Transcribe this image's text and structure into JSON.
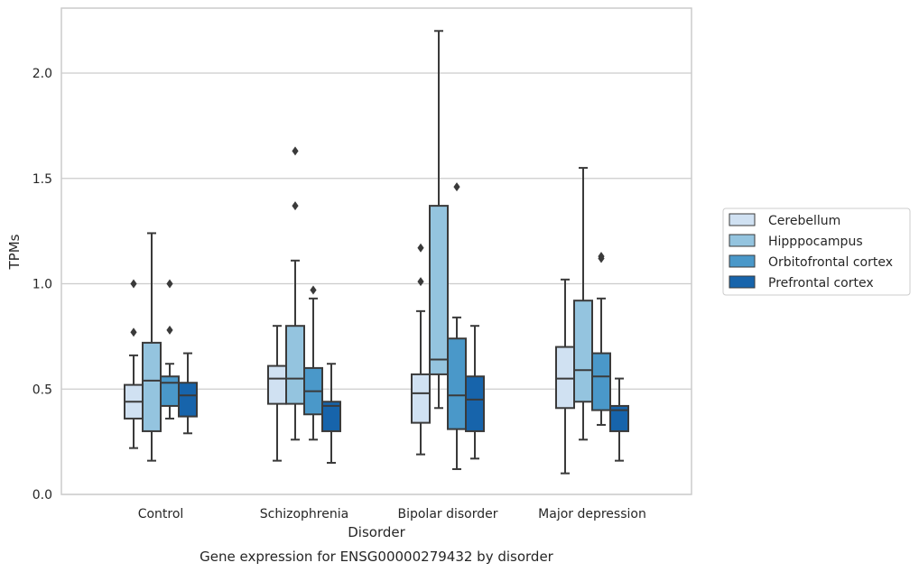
{
  "chart_data": {
    "type": "box",
    "caption": "Gene expression for ENSG00000279432 by disorder",
    "xlabel": "Disorder",
    "ylabel": "TPMs",
    "ylim": [
      0,
      2.3
    ],
    "yticks": [
      "0.0",
      "0.5",
      "1.0",
      "1.5",
      "2.0"
    ],
    "grid": true,
    "legend_position": "right",
    "categories": [
      "Control",
      "Schizophrenia",
      "Bipolar disorder",
      "Major depression"
    ],
    "series": [
      {
        "name": "Cerebellum",
        "color": "#d0e1f2",
        "boxes": [
          {
            "whisker_low": 0.22,
            "q1": 0.36,
            "median": 0.44,
            "q3": 0.52,
            "whisker_high": 0.66,
            "outliers": [
              0.77,
              1.0
            ]
          },
          {
            "whisker_low": 0.16,
            "q1": 0.43,
            "median": 0.55,
            "q3": 0.61,
            "whisker_high": 0.8,
            "outliers": []
          },
          {
            "whisker_low": 0.19,
            "q1": 0.34,
            "median": 0.48,
            "q3": 0.57,
            "whisker_high": 0.87,
            "outliers": [
              1.01,
              1.17
            ]
          },
          {
            "whisker_low": 0.1,
            "q1": 0.41,
            "median": 0.55,
            "q3": 0.7,
            "whisker_high": 1.02,
            "outliers": []
          }
        ]
      },
      {
        "name": "Hipppocampus",
        "color": "#94c4df",
        "boxes": [
          {
            "whisker_low": 0.16,
            "q1": 0.3,
            "median": 0.54,
            "q3": 0.72,
            "whisker_high": 1.24,
            "outliers": []
          },
          {
            "whisker_low": 0.26,
            "q1": 0.43,
            "median": 0.55,
            "q3": 0.8,
            "whisker_high": 1.11,
            "outliers": [
              1.37,
              1.63
            ]
          },
          {
            "whisker_low": 0.41,
            "q1": 0.57,
            "median": 0.64,
            "q3": 1.37,
            "whisker_high": 2.2,
            "outliers": []
          },
          {
            "whisker_low": 0.26,
            "q1": 0.44,
            "median": 0.59,
            "q3": 0.92,
            "whisker_high": 1.55,
            "outliers": []
          }
        ]
      },
      {
        "name": "Orbitofrontal cortex",
        "color": "#4a98c9",
        "boxes": [
          {
            "whisker_low": 0.36,
            "q1": 0.42,
            "median": 0.53,
            "q3": 0.56,
            "whisker_high": 0.62,
            "outliers": [
              0.78,
              1.0
            ]
          },
          {
            "whisker_low": 0.26,
            "q1": 0.38,
            "median": 0.49,
            "q3": 0.6,
            "whisker_high": 0.93,
            "outliers": [
              0.97
            ]
          },
          {
            "whisker_low": 0.12,
            "q1": 0.31,
            "median": 0.47,
            "q3": 0.74,
            "whisker_high": 0.84,
            "outliers": [
              1.46
            ]
          },
          {
            "whisker_low": 0.33,
            "q1": 0.4,
            "median": 0.56,
            "q3": 0.67,
            "whisker_high": 0.93,
            "outliers": [
              1.12,
              1.13
            ]
          }
        ]
      },
      {
        "name": "Prefrontal cortex",
        "color": "#1764ab",
        "boxes": [
          {
            "whisker_low": 0.29,
            "q1": 0.37,
            "median": 0.47,
            "q3": 0.53,
            "whisker_high": 0.67,
            "outliers": []
          },
          {
            "whisker_low": 0.15,
            "q1": 0.3,
            "median": 0.42,
            "q3": 0.44,
            "whisker_high": 0.62,
            "outliers": []
          },
          {
            "whisker_low": 0.17,
            "q1": 0.3,
            "median": 0.45,
            "q3": 0.56,
            "whisker_high": 0.8,
            "outliers": []
          },
          {
            "whisker_low": 0.16,
            "q1": 0.3,
            "median": 0.4,
            "q3": 0.42,
            "whisker_high": 0.55,
            "outliers": []
          }
        ]
      }
    ]
  }
}
